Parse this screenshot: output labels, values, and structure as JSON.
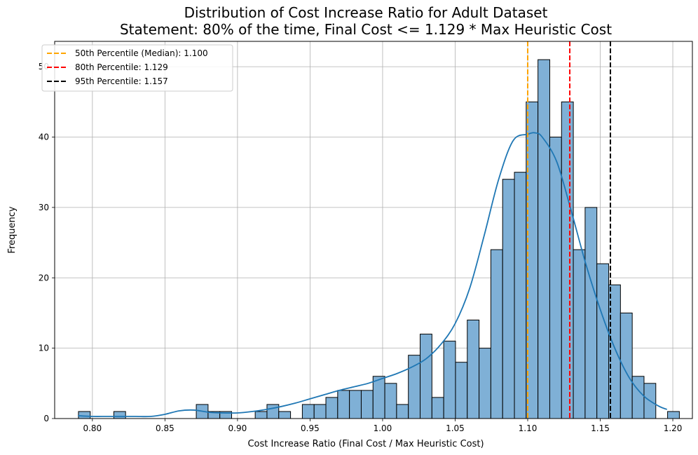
{
  "chart_data": {
    "type": "bar",
    "title_line1": "Distribution of Cost Increase Ratio for Adult Dataset",
    "title_line2": "Statement: 80% of the time, Final Cost <= 1.129 * Max Heuristic Cost",
    "xlabel": "Cost Increase Ratio (Final Cost / Max Heuristic Cost)",
    "ylabel": "Frequency",
    "xlim": [
      0.774,
      1.2135
    ],
    "ylim": [
      0,
      53.6
    ],
    "xticks": [
      0.8,
      0.85,
      0.9,
      0.95,
      1.0,
      1.05,
      1.1,
      1.15,
      1.2
    ],
    "xtick_labels": [
      "0.80",
      "0.85",
      "0.90",
      "0.95",
      "1.00",
      "1.05",
      "1.10",
      "1.15",
      "1.20"
    ],
    "yticks": [
      0,
      10,
      20,
      30,
      40,
      50
    ],
    "ytick_labels": [
      "0",
      "10",
      "20",
      "30",
      "40",
      "50"
    ],
    "grid": true,
    "bar_color": "#7fb0d6",
    "bar_edge_color": "#000000",
    "bin_start": 0.7904,
    "bin_width": 0.00812,
    "values": [
      1,
      0,
      0,
      1,
      0,
      0,
      0,
      0,
      0,
      0,
      2,
      1,
      1,
      0,
      0,
      1,
      2,
      1,
      0,
      2,
      2,
      3,
      4,
      4,
      4,
      6,
      5,
      2,
      9,
      12,
      3,
      11,
      8,
      14,
      10,
      24,
      34,
      35,
      45,
      51,
      40,
      45,
      24,
      30,
      22,
      19,
      15,
      6,
      5,
      0,
      1
    ],
    "kde": {
      "color": "#1f77b4",
      "x": [
        0.79,
        0.8,
        0.81,
        0.82,
        0.83,
        0.84,
        0.85,
        0.86,
        0.87,
        0.88,
        0.89,
        0.9,
        0.91,
        0.92,
        0.93,
        0.94,
        0.95,
        0.96,
        0.97,
        0.98,
        0.99,
        1.0,
        1.01,
        1.02,
        1.03,
        1.04,
        1.05,
        1.06,
        1.07,
        1.08,
        1.09,
        1.1,
        1.105,
        1.11,
        1.12,
        1.13,
        1.14,
        1.15,
        1.16,
        1.17,
        1.18,
        1.19,
        1.196
      ],
      "y": [
        0.4,
        0.3,
        0.3,
        0.3,
        0.3,
        0.3,
        0.6,
        1.1,
        1.2,
        0.9,
        0.8,
        0.8,
        1.0,
        1.3,
        1.7,
        2.2,
        2.8,
        3.4,
        4.0,
        4.5,
        5.0,
        5.7,
        6.4,
        7.3,
        8.5,
        10.5,
        13.5,
        18.5,
        26.0,
        34.0,
        39.5,
        40.4,
        40.6,
        40.0,
        36.5,
        29.5,
        22.0,
        15.5,
        10.0,
        5.8,
        3.2,
        1.8,
        1.3
      ]
    },
    "percentile_lines": [
      {
        "x": 1.1,
        "color": "#ffa500",
        "label": "50th Percentile (Median): 1.100"
      },
      {
        "x": 1.129,
        "color": "#ff0000",
        "label": "80th Percentile: 1.129"
      },
      {
        "x": 1.157,
        "color": "#000000",
        "label": "95th Percentile: 1.157"
      }
    ],
    "legend_position": "top-left"
  }
}
